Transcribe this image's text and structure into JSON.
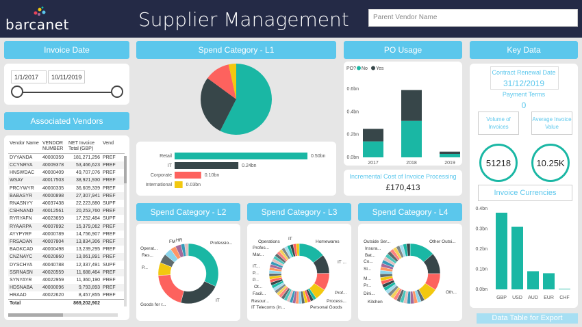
{
  "header": {
    "logo_text": "barcanet",
    "title": "Supplier Management",
    "vendor_placeholder": "Parent Vendor Name"
  },
  "invoice_date": {
    "title": "Invoice Date",
    "start": "1/1/2017",
    "end": "10/11/2019"
  },
  "vendors": {
    "title": "Associated Vendors",
    "columns": [
      "Vendor Name",
      "VENDOR NUMBER",
      "NET Invoice Total (GBP)",
      "Vend"
    ],
    "rows": [
      [
        "DYYANDA",
        "40000359",
        "181,271,256",
        "PREF"
      ],
      [
        "CCYNRYA",
        "40009378",
        "53,466,623",
        "PREF"
      ],
      [
        "HNSWDAC",
        "40000409",
        "49,707,076",
        "PREF"
      ],
      [
        "WSAY",
        "40017503",
        "38,921,930",
        "PREF"
      ],
      [
        "PRCYWYR",
        "40000335",
        "36,609,339",
        "PREF"
      ],
      [
        "BABASYR",
        "40000898",
        "27,307,941",
        "PREF"
      ],
      [
        "RNASNYY",
        "40037438",
        "22,223,880",
        "SUPF"
      ],
      [
        "CSHNAND",
        "40012561",
        "20,253,760",
        "PREF"
      ],
      [
        "RYRYAFN",
        "40023659",
        "17,252,484",
        "SUPF"
      ],
      [
        "RYAARPA",
        "40007892",
        "15,379,062",
        "PREF"
      ],
      [
        "AYYPYRF",
        "40000789",
        "14,756,907",
        "PREF"
      ],
      [
        "FRSADAN",
        "40007804",
        "13,834,306",
        "PREF"
      ],
      [
        "BAGKCAD",
        "40000498",
        "13,239,295",
        "PREF"
      ],
      [
        "CNZNAYC",
        "40020860",
        "13,061,891",
        "PREF"
      ],
      [
        "DYSCHYA",
        "40040788",
        "12,337,491",
        "SUPF"
      ],
      [
        "SSRNASN",
        "40020559",
        "11,688,464",
        "PREF"
      ],
      [
        "SYNYAYR",
        "40022959",
        "11,360,190",
        "PREF"
      ],
      [
        "HDSNABA",
        "40000096",
        "9,793,893",
        "PREF"
      ],
      [
        "HRAAD",
        "40022620",
        "8,457,855",
        "PREF"
      ]
    ],
    "total_label": "Total",
    "total_value": "869,202,902"
  },
  "spend_l1": {
    "title": "Spend Category - L1",
    "bars": [
      {
        "label": "Retail",
        "value": 0.5,
        "display": "0.50bn",
        "color": "#1ab7a4"
      },
      {
        "label": "IT",
        "value": 0.24,
        "display": "0.24bn",
        "color": "#374649"
      },
      {
        "label": "Corporate",
        "value": 0.1,
        "display": "0.10bn",
        "color": "#fd625e"
      },
      {
        "label": "International",
        "value": 0.03,
        "display": "0.03bn",
        "color": "#f2c80f"
      }
    ]
  },
  "po_usage": {
    "title": "PO Usage",
    "legend_title": "PO?",
    "legend": [
      {
        "name": "No",
        "color": "#1ab7a4"
      },
      {
        "name": "Yes",
        "color": "#374649"
      }
    ],
    "yticks": [
      "0.6bn",
      "0.4bn",
      "0.2bn",
      "0.0bn"
    ],
    "categories": [
      "2017",
      "2018",
      "2019"
    ],
    "no": [
      0.14,
      0.32,
      0.03
    ],
    "yes": [
      0.11,
      0.27,
      0.02
    ],
    "ymax": 0.6
  },
  "incremental": {
    "title": "Incremental Cost of Invoice Processing",
    "value": "£170,413"
  },
  "key_data": {
    "title": "Key Data",
    "renewal_label": "Contract Renewal Date",
    "renewal_value": "31/12/2019",
    "payment_label": "Payment Terms",
    "payment_value": "0",
    "volume_label": "Volume of Invoices",
    "average_label": "Average Invoice Value",
    "volume_value": "51218",
    "average_value": "10.25K",
    "currencies_title": "Invoice Currencies",
    "currency_yticks": [
      "0.4bn",
      "0.3bn",
      "0.2bn",
      "0.1bn",
      "0.0bn"
    ],
    "currencies": [
      "GBP",
      "USD",
      "AUD",
      "EUR",
      "CHF"
    ],
    "currency_values": [
      0.38,
      0.31,
      0.09,
      0.08,
      0.003
    ],
    "export_label": "Data Table for Export"
  },
  "spend_l2": {
    "title": "Spend Category - L2",
    "labels": [
      "FM",
      "HR",
      "Professio...",
      "Operat...",
      "Res...",
      "P...",
      "Goods for r...",
      "IT"
    ]
  },
  "spend_l3": {
    "title": "Spend Category - L3",
    "labels": [
      "Operations",
      "IT",
      "Homewares",
      "Profes...",
      "Mar...",
      "IT...",
      "P...",
      "P...",
      "Ot...",
      "Facil...",
      "Resour...",
      "IT Telecoms (in...",
      "IT ...",
      "Prof...",
      "Process...",
      "Personal Goods"
    ]
  },
  "spend_l4": {
    "title": "Spend Category - L4",
    "labels": [
      "Outside Ser...",
      "Insura...",
      "Bat...",
      "Co...",
      "Sl...",
      "M...",
      "Pr...",
      "Dini...",
      "Kitchen",
      "Other Outsi...",
      "Oth..."
    ]
  },
  "chart_data": [
    {
      "type": "pie",
      "title": "Spend Category - L1",
      "categories": [
        "Retail",
        "IT",
        "Corporate",
        "International"
      ],
      "values": [
        0.5,
        0.24,
        0.1,
        0.03
      ]
    },
    {
      "type": "bar",
      "title": "Spend Category - L1",
      "categories": [
        "Retail",
        "IT",
        "Corporate",
        "International"
      ],
      "values": [
        0.5,
        0.24,
        0.1,
        0.03
      ]
    },
    {
      "type": "bar",
      "title": "PO Usage",
      "categories": [
        "2017",
        "2018",
        "2019"
      ],
      "series": [
        {
          "name": "No",
          "values": [
            0.14,
            0.32,
            0.03
          ]
        },
        {
          "name": "Yes",
          "values": [
            0.11,
            0.27,
            0.02
          ]
        }
      ],
      "ylim": [
        0,
        0.6
      ]
    },
    {
      "type": "bar",
      "title": "Invoice Currencies",
      "categories": [
        "GBP",
        "USD",
        "AUD",
        "EUR",
        "CHF"
      ],
      "values": [
        0.38,
        0.31,
        0.09,
        0.08,
        0.003
      ],
      "ylim": [
        0,
        0.4
      ]
    }
  ]
}
